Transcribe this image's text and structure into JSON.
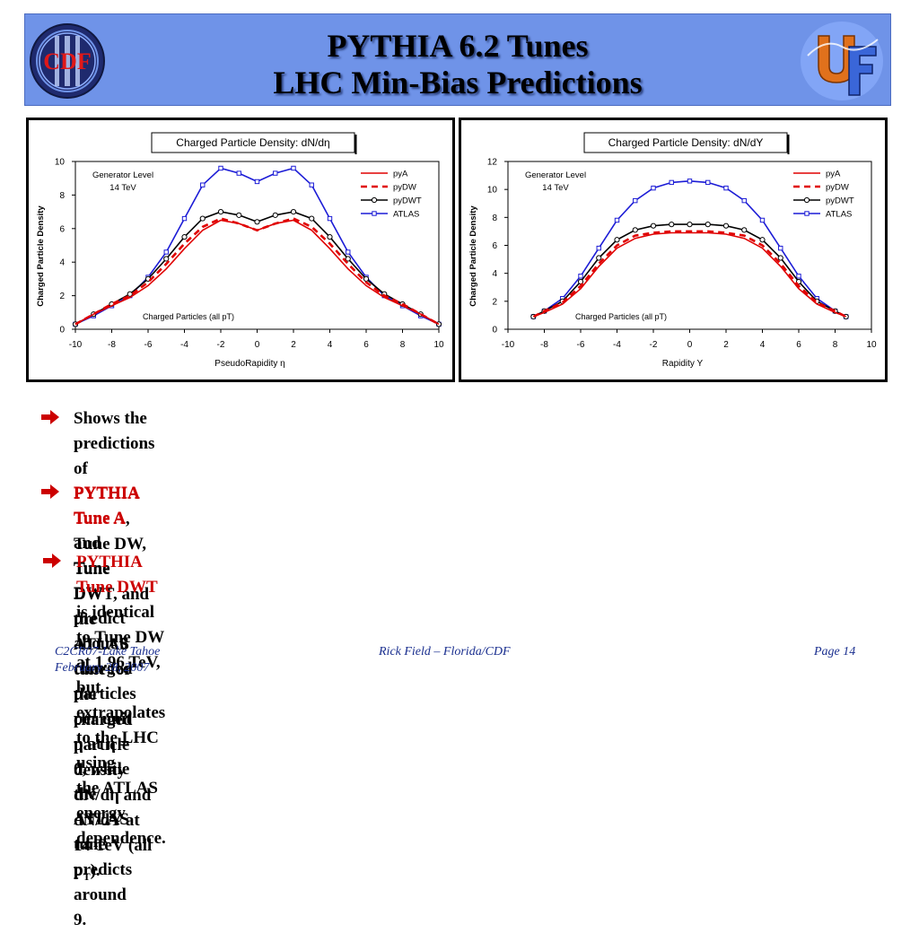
{
  "slide": {
    "title_line1": "PYTHIA 6.2 Tunes",
    "title_line2": "LHC Min-Bias Predictions",
    "banner_color": "#6f93e8",
    "left_logo": {
      "text": "CDF",
      "icon": "cdf-logo-icon"
    },
    "right_logo": {
      "icon": "uf-logo-icon"
    }
  },
  "chart_data": [
    {
      "type": "line",
      "title": "Charged Particle Density: dN/dη",
      "xlabel": "PseudoRapidity η",
      "ylabel": "Charged Particle Density",
      "xlim": [
        -10,
        10
      ],
      "ylim": [
        0,
        10
      ],
      "xticks": [
        -10,
        -8,
        -6,
        -4,
        -2,
        0,
        2,
        4,
        6,
        8,
        10
      ],
      "yticks": [
        0,
        2,
        4,
        6,
        8,
        10
      ],
      "grid": false,
      "legend_position": "top-right",
      "annotations": {
        "generator_level": "Generator Level",
        "energy": "14 TeV",
        "charged_particles": "Charged Particles (all pT)"
      },
      "x": [
        -10,
        -9,
        -8,
        -7,
        -6,
        -5,
        -4,
        -3,
        -2,
        -1,
        0,
        1,
        2,
        3,
        4,
        5,
        6,
        7,
        8,
        9,
        10
      ],
      "series": [
        {
          "name": "pyA",
          "color": "#e00000",
          "style": "solid",
          "values": [
            0.3,
            0.9,
            1.4,
            1.9,
            2.6,
            3.6,
            4.8,
            5.9,
            6.5,
            6.3,
            5.9,
            6.3,
            6.5,
            5.9,
            4.8,
            3.6,
            2.6,
            1.9,
            1.4,
            0.9,
            0.3
          ]
        },
        {
          "name": "pyDW",
          "color": "#e00000",
          "style": "dashed",
          "values": [
            0.3,
            0.9,
            1.5,
            2.0,
            2.8,
            3.9,
            5.1,
            6.1,
            6.6,
            6.3,
            5.9,
            6.3,
            6.6,
            6.1,
            5.1,
            3.9,
            2.8,
            2.0,
            1.5,
            0.9,
            0.3
          ]
        },
        {
          "name": "pyDWT",
          "color": "#000000",
          "style": "circles",
          "values": [
            0.3,
            0.9,
            1.5,
            2.1,
            3.0,
            4.2,
            5.5,
            6.6,
            7.0,
            6.8,
            6.4,
            6.8,
            7.0,
            6.6,
            5.5,
            4.2,
            3.0,
            2.1,
            1.5,
            0.9,
            0.3
          ]
        },
        {
          "name": "ATLAS",
          "color": "#1c1cd6",
          "style": "squares",
          "values": [
            0.3,
            0.8,
            1.4,
            2.0,
            3.1,
            4.6,
            6.6,
            8.6,
            9.6,
            9.3,
            8.8,
            9.3,
            9.6,
            8.6,
            6.6,
            4.6,
            3.1,
            2.0,
            1.4,
            0.8,
            0.3
          ]
        }
      ]
    },
    {
      "type": "line",
      "title": "Charged Particle Density: dN/dY",
      "xlabel": "Rapidity Y",
      "ylabel": "Charged Particle Density",
      "xlim": [
        -10,
        10
      ],
      "ylim": [
        0,
        12
      ],
      "xticks": [
        -10,
        -8,
        -6,
        -4,
        -2,
        0,
        2,
        4,
        6,
        8,
        10
      ],
      "yticks": [
        0,
        2,
        4,
        6,
        8,
        10,
        12
      ],
      "grid": false,
      "legend_position": "top-right",
      "annotations": {
        "generator_level": "Generator Level",
        "energy": "14 TeV",
        "charged_particles": "Charged Particles (all pT)"
      },
      "x": [
        -8.6,
        -8,
        -7,
        -6,
        -5,
        -4,
        -3,
        -2,
        -1,
        0,
        1,
        2,
        3,
        4,
        5,
        6,
        7,
        8,
        8.6
      ],
      "series": [
        {
          "name": "pyA",
          "color": "#e00000",
          "style": "solid",
          "values": [
            0.9,
            1.2,
            1.8,
            2.9,
            4.5,
            5.8,
            6.5,
            6.8,
            6.9,
            6.9,
            6.9,
            6.8,
            6.5,
            5.8,
            4.5,
            2.9,
            1.8,
            1.2,
            0.9
          ]
        },
        {
          "name": "pyDW",
          "color": "#e00000",
          "style": "dashed",
          "values": [
            0.9,
            1.3,
            1.9,
            3.1,
            4.7,
            6.0,
            6.7,
            6.9,
            7.0,
            7.0,
            7.0,
            6.9,
            6.7,
            6.0,
            4.7,
            3.1,
            1.9,
            1.3,
            0.9
          ]
        },
        {
          "name": "pyDWT",
          "color": "#000000",
          "style": "circles",
          "values": [
            0.9,
            1.3,
            2.0,
            3.4,
            5.1,
            6.4,
            7.1,
            7.4,
            7.5,
            7.5,
            7.5,
            7.4,
            7.1,
            6.4,
            5.1,
            3.4,
            2.0,
            1.3,
            0.9
          ]
        },
        {
          "name": "ATLAS",
          "color": "#1c1cd6",
          "style": "squares",
          "values": [
            0.9,
            1.3,
            2.2,
            3.8,
            5.8,
            7.8,
            9.2,
            10.1,
            10.5,
            10.6,
            10.5,
            10.1,
            9.2,
            7.8,
            5.8,
            3.8,
            2.2,
            1.3,
            0.9
          ]
        }
      ]
    }
  ],
  "bullets": {
    "b1": {
      "t1": "Shows the predictions of ",
      "t2": "PYTHIA Tune A",
      "t3": ", Tune DW, Tune DWT, and the ATLAS tune for",
      "t4": "the charged particle density dN/dη and dN/dY at 14 TeV (all p",
      "t5": "T",
      "t6": ")."
    },
    "b2": {
      "t1": "PYTHIA Tune A",
      "t2": " and Tune DW predict about 6 charged particles per unit η at η = 0, while",
      "t3": "the ATLAS tune predicts around 9."
    },
    "b3": {
      "t1": "PYTHIA Tune DWT",
      "t2": " is identical to Tune DW at 1.96 TeV, but extrapolates to the LHC using",
      "t3": "the ATLAS energy dependence."
    },
    "arrow_icon": "right-arrow-icon",
    "highlight_color": "#cc0000"
  },
  "footer": {
    "conference": "C2CR07-Lake Tahoe",
    "date": "February 28, 2007",
    "author": "Rick Field – Florida/CDF",
    "page": "Page 14"
  }
}
